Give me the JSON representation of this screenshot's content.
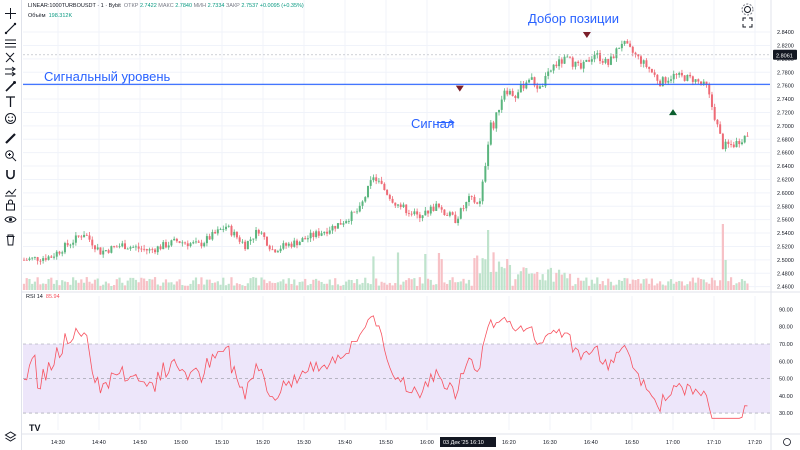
{
  "header": {
    "symbol": "LINEAR:1000TURBOUSDT · 1 · Bybit",
    "open_label": "ОТКР",
    "open": "2.7422",
    "high_label": "МАКС",
    "high": "2.7840",
    "low_label": "МИН",
    "low": "2.7334",
    "close_label": "ЗАКР",
    "close": "2.7537",
    "change": "+0.0095 (+0.35%)",
    "volume_label": "Объём",
    "volume": "198.312K"
  },
  "annotations": {
    "level_label": "Сигнальный уровень",
    "signal_label": "Сигнал",
    "add_label": "Добор позиции"
  },
  "rsi": {
    "label": "RSI 14",
    "value": "85.94"
  },
  "price_axis": {
    "ticks": [
      "2.8400",
      "2.8200",
      "2.8000",
      "2.7800",
      "2.7600",
      "2.7400",
      "2.7200",
      "2.7000",
      "2.6800",
      "2.6600",
      "2.6400",
      "2.6200",
      "2.6000",
      "2.5800",
      "2.5600",
      "2.5400",
      "2.5200",
      "2.5000",
      "2.4800",
      "2.4600"
    ],
    "current_price": "2.8061"
  },
  "rsi_axis": {
    "ticks": [
      "90.00",
      "80.00",
      "70.00",
      "60.00",
      "50.00",
      "40.00",
      "30.00"
    ]
  },
  "time_axis": {
    "ticks": [
      "14:30",
      "14:40",
      "14:50",
      "15:00",
      "15:10",
      "15:20",
      "15:30",
      "15:40",
      "15:50",
      "16:00",
      "16:20",
      "16:30",
      "16:40",
      "16:50",
      "17:00",
      "17:10",
      "17:20"
    ],
    "cursor_label": "03 Дек '25   16:10"
  },
  "colors": {
    "up": "#5ab57e",
    "down": "#ee6b76",
    "level_line": "#2962ff",
    "rsi_line": "#f7525f",
    "rsi_band": "#ede6fa"
  },
  "icons": [
    "crosshair-icon",
    "trendline-icon",
    "fib-icon",
    "pattern-icon",
    "forecast-icon",
    "brush-icon",
    "text-icon",
    "emoji-icon",
    "ruler-icon",
    "zoom-icon",
    "magnet-icon",
    "stay-drawing-icon",
    "lock-icon",
    "eye-icon",
    "trash-icon",
    "layers-icon"
  ],
  "chart_data": {
    "type": "candlestick",
    "y_range": [
      2.455,
      2.855
    ],
    "level": 2.762,
    "signal_time": "16:08",
    "add_time": "16:39",
    "exit_time": "17:00",
    "x_ticks": [
      "14:30",
      "14:40",
      "14:50",
      "15:00",
      "15:10",
      "15:20",
      "15:30",
      "15:40",
      "15:50",
      "16:00",
      "16:20",
      "16:30",
      "16:40",
      "16:50",
      "17:00",
      "17:10",
      "17:20"
    ],
    "rsi_range": [
      26,
      92
    ],
    "rsi_bands": [
      30,
      50,
      70
    ]
  }
}
